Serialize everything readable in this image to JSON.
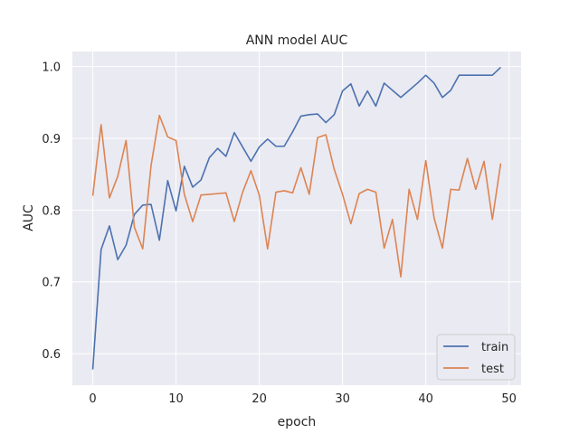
{
  "chart_data": {
    "type": "line",
    "title": "ANN model AUC",
    "xlabel": "epoch",
    "ylabel": "AUC",
    "xlim": [
      -2.45,
      51.45
    ],
    "ylim": [
      0.556,
      1.021
    ],
    "xticks": [
      0,
      10,
      20,
      30,
      40,
      50
    ],
    "yticks": [
      0.6,
      0.7,
      0.8,
      0.9,
      1.0
    ],
    "ytick_labels": [
      "0.6",
      "0.7",
      "0.8",
      "0.9",
      "1.0"
    ],
    "grid": true,
    "legend_position": "lower-right",
    "x": [
      0,
      1,
      2,
      3,
      4,
      5,
      6,
      7,
      8,
      9,
      10,
      11,
      12,
      13,
      14,
      15,
      16,
      17,
      18,
      19,
      20,
      21,
      22,
      23,
      24,
      25,
      26,
      27,
      28,
      29,
      30,
      31,
      32,
      33,
      34,
      35,
      36,
      37,
      38,
      39,
      40,
      41,
      42,
      43,
      44,
      45,
      46,
      47,
      48,
      49
    ],
    "series": [
      {
        "name": "train",
        "color": "#4c72b0",
        "values": [
          0.578,
          0.745,
          0.778,
          0.731,
          0.751,
          0.794,
          0.807,
          0.808,
          0.758,
          0.841,
          0.799,
          0.861,
          0.832,
          0.842,
          0.873,
          0.886,
          0.875,
          0.908,
          0.888,
          0.868,
          0.888,
          0.899,
          0.889,
          0.889,
          0.909,
          0.931,
          0.933,
          0.934,
          0.922,
          0.933,
          0.966,
          0.976,
          0.945,
          0.966,
          0.945,
          0.977,
          0.967,
          0.957,
          0.967,
          0.977,
          0.988,
          0.977,
          0.957,
          0.967,
          0.988,
          0.988,
          0.988,
          0.988,
          0.988,
          0.999
        ]
      },
      {
        "name": "test",
        "color": "#dd8452",
        "values": [
          0.82,
          0.919,
          0.817,
          0.847,
          0.897,
          0.776,
          0.746,
          0.862,
          0.932,
          0.902,
          0.897,
          0.822,
          0.784,
          0.821,
          0.822,
          0.823,
          0.824,
          0.784,
          0.825,
          0.855,
          0.821,
          0.746,
          0.825,
          0.827,
          0.824,
          0.859,
          0.822,
          0.901,
          0.905,
          0.857,
          0.822,
          0.781,
          0.823,
          0.829,
          0.825,
          0.747,
          0.787,
          0.707,
          0.829,
          0.787,
          0.869,
          0.789,
          0.747,
          0.829,
          0.828,
          0.872,
          0.829,
          0.868,
          0.787,
          0.865
        ]
      }
    ]
  }
}
